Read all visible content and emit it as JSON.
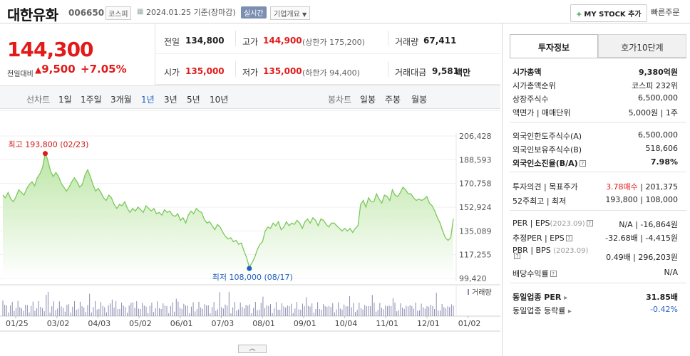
{
  "header": {
    "stock_name": "대한유화",
    "stock_code": "006650",
    "market": "코스피",
    "date_text": "2024.01.25  기준(장마감)",
    "realtime_label": "실시간",
    "overview_label": "기업개요",
    "mystock_label": "MY STOCK 추가",
    "quick_order_label": "빠른주문"
  },
  "price": {
    "current": "144,300",
    "change_label": "전일대비",
    "change_value": "9,500",
    "change_rate": "+7.05%",
    "color_up": "#e21a1a"
  },
  "quote": {
    "prev_label": "전일",
    "prev_value": "134,800",
    "high_label": "고가",
    "high_value": "144,900",
    "upper_limit_text": "(상한가 175,200)",
    "volume_label": "거래량",
    "volume_value": "67,411",
    "open_label": "시가",
    "open_value": "135,000",
    "low_label": "저가",
    "low_value": "135,000",
    "lower_limit_text": "(하한가 94,400)",
    "amount_label": "거래대금",
    "amount_value": "9,581",
    "amount_unit": "백만"
  },
  "tabs": {
    "line_label": "선차트",
    "line_periods": [
      "1일",
      "1주일",
      "3개월",
      "1년",
      "3년",
      "5년",
      "10년"
    ],
    "active_period": "1년",
    "candle_label": "봉차트",
    "candle_periods": [
      "일봉",
      "주봉",
      "월봉"
    ]
  },
  "chart_data": {
    "type": "area",
    "y_ticks": [
      "206,428",
      "188,593",
      "170,758",
      "152,924",
      "135,089",
      "117,255",
      "99,420"
    ],
    "ylim": [
      99420,
      206428
    ],
    "x_ticks": [
      "01/25",
      "03/02",
      "04/03",
      "05/02",
      "06/01",
      "07/03",
      "08/01",
      "09/01",
      "10/04",
      "11/01",
      "12/01",
      "01/02"
    ],
    "high_label": "최고 193,800 (02/23)",
    "low_label": "최저 108,000 (08/17)",
    "volume_label": "거래량",
    "line_color": "#79c95a",
    "fill_color": "#c8ebb5",
    "values": [
      162000,
      160000,
      164000,
      159000,
      157000,
      161000,
      166000,
      164000,
      162000,
      167000,
      170000,
      172000,
      169000,
      175000,
      178000,
      183000,
      193800,
      188000,
      180000,
      176000,
      179000,
      176000,
      171000,
      168000,
      165000,
      168000,
      172000,
      175000,
      172000,
      168000,
      170000,
      177000,
      181000,
      176000,
      170000,
      165000,
      167000,
      164000,
      160000,
      158000,
      162000,
      160000,
      155000,
      152000,
      155000,
      154000,
      157000,
      152000,
      149000,
      152000,
      150000,
      153000,
      151000,
      149000,
      154000,
      152000,
      150000,
      152000,
      148000,
      149000,
      147000,
      151000,
      149000,
      150000,
      147000,
      146000,
      148000,
      143000,
      145000,
      141000,
      147000,
      150000,
      148000,
      152000,
      150000,
      149000,
      144000,
      141000,
      142000,
      139000,
      136000,
      140000,
      138000,
      134000,
      131000,
      129000,
      130000,
      127000,
      128000,
      125000,
      126000,
      120000,
      115000,
      108000,
      111000,
      115000,
      121000,
      125000,
      127000,
      135000,
      138000,
      137000,
      141000,
      139000,
      142000,
      136000,
      138000,
      142000,
      139000,
      141000,
      140000,
      143000,
      141000,
      137000,
      142000,
      144000,
      141000,
      145000,
      143000,
      139000,
      144000,
      143000,
      140000,
      138000,
      141000,
      141000,
      139000,
      137000,
      135000,
      137000,
      135000,
      137000,
      134000,
      137000,
      139000,
      155000,
      158000,
      153000,
      160000,
      157000,
      157000,
      163000,
      159000,
      156000,
      162000,
      161000,
      158000,
      166000,
      162000,
      161000,
      164000,
      168000,
      166000,
      163000,
      163000,
      160000,
      158000,
      159000,
      158000,
      159000,
      161000,
      156000,
      154000,
      150000,
      145000,
      141000,
      135000,
      130000,
      128000,
      130000,
      144300
    ]
  },
  "right_panel": {
    "tab_active": "투자정보",
    "tab_other": "호가10단계",
    "market_cap_label": "시가총액",
    "market_cap_value": "9,380억원",
    "market_cap_rank_label": "시가총액순위",
    "market_cap_rank_value": "코스피 232위",
    "shares_label": "상장주식수",
    "shares_value": "6,500,000",
    "par_label": "액면가 | 매매단위",
    "par_value": "5,000원 | 1주",
    "foreign_limit_label": "외국인한도주식수(A)",
    "foreign_limit_value": "6,500,000",
    "foreign_hold_label": "외국인보유주식수(B)",
    "foreign_hold_value": "518,606",
    "foreign_ratio_label": "외국인소진율(B/A)",
    "foreign_ratio_value": "7.98%",
    "opinion_label": "투자의견 | 목표주가",
    "opinion_value": "3.78매수",
    "target_price": "201,375",
    "w52_label": "52주최고 | 최저",
    "w52_value": "193,800 | 108,000",
    "per_label": "PER | EPS",
    "per_period": "(2023.09)",
    "per_value": "N/A | -16,864원",
    "est_per_label": "추정PER | EPS",
    "est_per_value": "-32.68배 | -4,415원",
    "pbr_label": "PBR | BPS",
    "pbr_period": "(2023.09)",
    "pbr_value": "0.49배 | 296,203원",
    "div_label": "배당수익률",
    "div_value": "N/A",
    "sector_per_label": "동일업종 PER",
    "sector_per_value": "31.85배",
    "sector_rate_label": "동일업종 등락률",
    "sector_rate_value": "-0.42%"
  }
}
